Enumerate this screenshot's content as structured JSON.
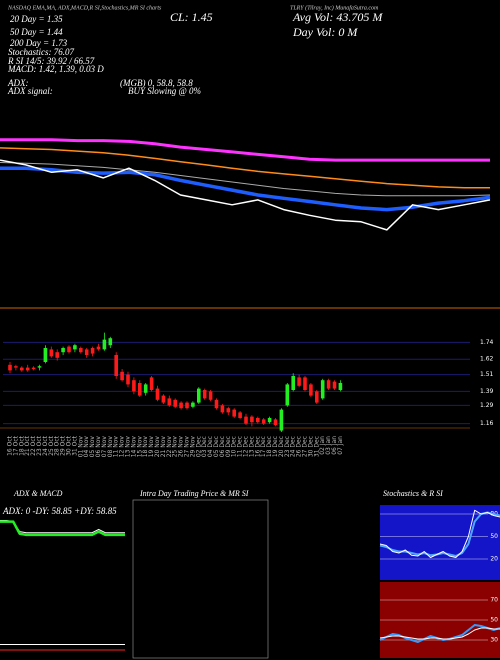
{
  "chart_data": [
    {
      "type": "line",
      "title": "TLRY (Tilray, Inc) MunafaSutra.com",
      "subtitle": "NASDAQ EMA,MA, ADX,MACD,R SI,Stochastics,MR SI charts",
      "annotations": [
        "20 Day = 1.35",
        "CL: 1.45",
        "Avg Vol: 43.705 M",
        "50 Day = 1.44",
        "Day Vol: 0 M",
        "200 Day = 1.73",
        "Stochastics: 76.07",
        "R SI 14/5: 39.92 / 66.57",
        "MACD: 1.42, 1.39, 0.03 D",
        "ADX:",
        "(MGB) 0, 58.8, 58.8",
        "ADX signal:",
        "BUY Slowing @ 0%"
      ],
      "ylim": [
        0.9,
        2.5
      ],
      "series": [
        {
          "color": "#ff33ff",
          "width": 3,
          "values": [
            2.38,
            2.38,
            2.38,
            2.37,
            2.37,
            2.36,
            2.33,
            2.29,
            2.26,
            2.23,
            2.2,
            2.17,
            2.14,
            2.13,
            2.13,
            2.13,
            2.13,
            2.13,
            2.13,
            2.13
          ]
        },
        {
          "color": "#ff8c1a",
          "width": 1.5,
          "values": [
            2.28,
            2.27,
            2.26,
            2.24,
            2.22,
            2.19,
            2.15,
            2.11,
            2.07,
            2.03,
            1.99,
            1.96,
            1.93,
            1.9,
            1.87,
            1.84,
            1.82,
            1.8,
            1.79,
            1.79
          ]
        },
        {
          "color": "#aaaaaa",
          "width": 1,
          "values": [
            2.1,
            2.09,
            2.08,
            2.06,
            2.04,
            2.01,
            1.98,
            1.94,
            1.9,
            1.86,
            1.82,
            1.78,
            1.75,
            1.72,
            1.7,
            1.69,
            1.69,
            1.69,
            1.69,
            1.7
          ]
        },
        {
          "color": "#1e5eff",
          "width": 3.5,
          "values": [
            2.03,
            2.03,
            2.01,
            1.98,
            1.97,
            1.98,
            1.95,
            1.88,
            1.82,
            1.76,
            1.7,
            1.66,
            1.62,
            1.58,
            1.54,
            1.52,
            1.55,
            1.6,
            1.63,
            1.67
          ]
        },
        {
          "color": "#ffffff",
          "width": 1.5,
          "values": [
            2.13,
            2.07,
            1.98,
            2.01,
            1.91,
            2.03,
            1.88,
            1.7,
            1.64,
            1.58,
            1.64,
            1.52,
            1.45,
            1.39,
            1.37,
            1.27,
            1.58,
            1.52,
            1.58,
            1.64
          ]
        }
      ]
    },
    {
      "type": "candlestick",
      "categories": [
        "16 Oct",
        "17 Oct",
        "18 Oct",
        "21 Oct",
        "22 Oct",
        "23 Oct",
        "24 Oct",
        "25 Oct",
        "28 Oct",
        "29 Oct",
        "30 Oct",
        "31 Oct",
        "01 Nov",
        "04 Nov",
        "05 Nov",
        "06 Nov",
        "07 Nov",
        "08 Nov",
        "11 Nov",
        "12 Nov",
        "13 Nov",
        "14 Nov",
        "15 Nov",
        "18 Nov",
        "19 Nov",
        "20 Nov",
        "21 Nov",
        "22 Nov",
        "25 Nov",
        "26 Nov",
        "27 Nov",
        "29 Nov",
        "02 Dec",
        "03 Dec",
        "04 Dec",
        "05 Dec",
        "06 Dec",
        "09 Dec",
        "10 Dec",
        "11 Dec",
        "12 Dec",
        "13 Dec",
        "16 Dec",
        "17 Dec",
        "18 Dec",
        "19 Dec",
        "20 Dec",
        "23 Dec",
        "24 Dec",
        "26 Dec",
        "27 Dec",
        "30 Dec",
        "31 Dec",
        "02 Jan",
        "03 Jan",
        "06 Jan",
        "07 Jan"
      ],
      "open": [
        1.58,
        1.57,
        1.56,
        1.56,
        1.56,
        1.56,
        1.6,
        1.69,
        1.67,
        1.67,
        1.71,
        1.69,
        1.7,
        1.69,
        1.7,
        1.71,
        1.69,
        1.72,
        1.65,
        1.53,
        1.51,
        1.47,
        1.45,
        1.38,
        1.49,
        1.41,
        1.36,
        1.34,
        1.33,
        1.31,
        1.31,
        1.28,
        1.31,
        1.4,
        1.39,
        1.33,
        1.29,
        1.27,
        1.26,
        1.24,
        1.21,
        1.21,
        1.2,
        1.19,
        1.17,
        1.19,
        1.11,
        1.29,
        1.4,
        1.49,
        1.49,
        1.44,
        1.39,
        1.34,
        1.47,
        1.46,
        1.4
      ],
      "high": [
        1.6,
        1.58,
        1.57,
        1.58,
        1.57,
        1.58,
        1.72,
        1.71,
        1.69,
        1.71,
        1.72,
        1.73,
        1.71,
        1.7,
        1.71,
        1.73,
        1.81,
        1.78,
        1.67,
        1.55,
        1.53,
        1.49,
        1.47,
        1.45,
        1.5,
        1.43,
        1.37,
        1.36,
        1.34,
        1.32,
        1.32,
        1.32,
        1.42,
        1.41,
        1.4,
        1.34,
        1.3,
        1.28,
        1.27,
        1.25,
        1.23,
        1.22,
        1.21,
        1.2,
        1.21,
        1.2,
        1.27,
        1.45,
        1.52,
        1.51,
        1.5,
        1.45,
        1.4,
        1.48,
        1.48,
        1.47,
        1.47
      ],
      "low": [
        1.52,
        1.54,
        1.53,
        1.53,
        1.54,
        1.54,
        1.59,
        1.63,
        1.61,
        1.65,
        1.66,
        1.67,
        1.66,
        1.63,
        1.64,
        1.68,
        1.68,
        1.7,
        1.48,
        1.46,
        1.42,
        1.37,
        1.35,
        1.36,
        1.39,
        1.32,
        1.3,
        1.28,
        1.27,
        1.26,
        1.26,
        1.27,
        1.3,
        1.33,
        1.32,
        1.26,
        1.23,
        1.22,
        1.2,
        1.19,
        1.15,
        1.14,
        1.16,
        1.15,
        1.16,
        1.14,
        1.1,
        1.28,
        1.39,
        1.42,
        1.39,
        1.35,
        1.3,
        1.33,
        1.4,
        1.4,
        1.39
      ],
      "close": [
        1.54,
        1.56,
        1.54,
        1.54,
        1.55,
        1.57,
        1.7,
        1.64,
        1.63,
        1.7,
        1.67,
        1.72,
        1.67,
        1.65,
        1.66,
        1.69,
        1.76,
        1.77,
        1.5,
        1.47,
        1.44,
        1.39,
        1.36,
        1.44,
        1.4,
        1.33,
        1.31,
        1.29,
        1.28,
        1.27,
        1.27,
        1.31,
        1.41,
        1.34,
        1.33,
        1.27,
        1.24,
        1.24,
        1.21,
        1.2,
        1.16,
        1.17,
        1.17,
        1.16,
        1.2,
        1.15,
        1.26,
        1.44,
        1.5,
        1.43,
        1.4,
        1.36,
        1.31,
        1.47,
        1.41,
        1.41,
        1.45
      ],
      "up_color": "#22ee22",
      "down_color": "#ff1a1a",
      "ylim": [
        1.1,
        1.9
      ],
      "yticks": [
        1.16,
        1.29,
        1.39,
        1.51,
        1.62,
        1.74
      ],
      "grid": true
    },
    {
      "type": "line",
      "title": "ADX & MACD",
      "annotations": [
        "ADX: 0 -DY: 58.85 +DY: 58.85"
      ],
      "ylim": [
        -40,
        100
      ],
      "series": [
        {
          "color": "#ffffff",
          "width": 1,
          "values": [
            86,
            86,
            85,
            76,
            75,
            75,
            75,
            75,
            75,
            75,
            75,
            75,
            75,
            75,
            75,
            78,
            75,
            75,
            75,
            75
          ]
        },
        {
          "color": "#22ee22",
          "width": 2.5,
          "values": [
            85,
            85,
            85,
            74,
            73,
            73,
            73,
            73,
            73,
            73,
            73,
            73,
            73,
            73,
            73,
            76,
            73,
            73,
            73,
            73
          ]
        },
        {
          "color": "#ff2222",
          "width": 1,
          "values": [
            -31,
            -31,
            -31,
            -31,
            -31,
            -31,
            -31,
            -31,
            -31,
            -31,
            -31,
            -31,
            -31,
            -31,
            -31,
            -31,
            -31,
            -31,
            -31,
            -31
          ]
        },
        {
          "color": "#ffffff",
          "width": 1,
          "values": [
            -26,
            -26,
            -26,
            -26,
            -26,
            -26,
            -26,
            -26,
            -26,
            -26,
            -26,
            -26,
            -26,
            -26,
            -26,
            -26,
            -26,
            -26,
            -26,
            -26
          ]
        }
      ]
    },
    {
      "type": "line",
      "title": "Intra Day Trading Price & MR SI"
    },
    {
      "type": "line",
      "title": "Stochastics & R SI",
      "background": "#1414c8",
      "ylim": [
        -8,
        92
      ],
      "yticks": [
        20,
        50,
        80
      ],
      "series": [
        {
          "color": "#4da6ff",
          "width": 2,
          "values": [
            38,
            36,
            32,
            30,
            30,
            28,
            26,
            28,
            25,
            26,
            28,
            26,
            24,
            28,
            40,
            70,
            80,
            82,
            80,
            78
          ]
        },
        {
          "color": "#ffffff",
          "width": 1,
          "values": [
            40,
            38,
            30,
            28,
            32,
            25,
            24,
            30,
            22,
            26,
            30,
            24,
            22,
            30,
            50,
            85,
            80,
            82,
            78,
            76
          ]
        }
      ]
    },
    {
      "type": "line",
      "background": "#8b0000",
      "ylim": [
        12,
        88
      ],
      "yticks": [
        30,
        50,
        70
      ],
      "series": [
        {
          "color": "#3399ff",
          "width": 2,
          "values": [
            30,
            33,
            36,
            35,
            32,
            30,
            28,
            31,
            34,
            32,
            30,
            31,
            33,
            35,
            40,
            45,
            44,
            42,
            40,
            42
          ]
        },
        {
          "color": "#ffffff",
          "width": 1,
          "values": [
            32,
            33,
            34,
            34,
            33,
            32,
            31,
            31,
            32,
            32,
            31,
            31,
            32,
            33,
            36,
            40,
            42,
            42,
            41,
            41
          ]
        }
      ]
    }
  ]
}
